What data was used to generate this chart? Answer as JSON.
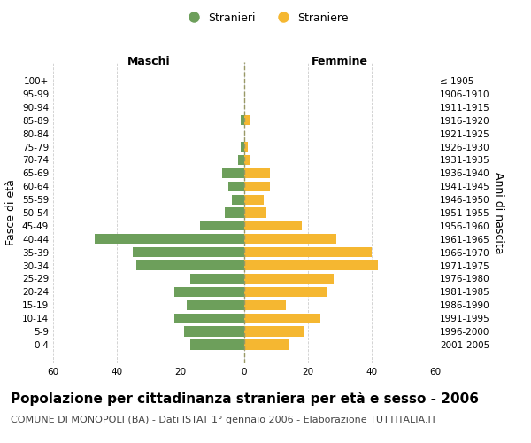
{
  "age_groups": [
    "100+",
    "95-99",
    "90-94",
    "85-89",
    "80-84",
    "75-79",
    "70-74",
    "65-69",
    "60-64",
    "55-59",
    "50-54",
    "45-49",
    "40-44",
    "35-39",
    "30-34",
    "25-29",
    "20-24",
    "15-19",
    "10-14",
    "5-9",
    "0-4"
  ],
  "birth_years": [
    "≤ 1905",
    "1906-1910",
    "1911-1915",
    "1916-1920",
    "1921-1925",
    "1926-1930",
    "1931-1935",
    "1936-1940",
    "1941-1945",
    "1946-1950",
    "1951-1955",
    "1956-1960",
    "1961-1965",
    "1966-1970",
    "1971-1975",
    "1976-1980",
    "1981-1985",
    "1986-1990",
    "1991-1995",
    "1996-2000",
    "2001-2005"
  ],
  "maschi": [
    0,
    0,
    0,
    1,
    0,
    1,
    2,
    7,
    5,
    4,
    6,
    14,
    47,
    35,
    34,
    17,
    22,
    18,
    22,
    19,
    17
  ],
  "femmine": [
    0,
    0,
    0,
    2,
    0,
    1,
    2,
    8,
    8,
    6,
    7,
    18,
    29,
    40,
    42,
    28,
    26,
    13,
    24,
    19,
    14
  ],
  "maschi_color": "#6d9f5b",
  "femmine_color": "#f5b731",
  "xlim": 60,
  "title": "Popolazione per cittadinanza straniera per età e sesso - 2006",
  "subtitle": "COMUNE DI MONOPOLI (BA) - Dati ISTAT 1° gennaio 2006 - Elaborazione TUTTITALIA.IT",
  "xlabel_left": "Maschi",
  "xlabel_right": "Femmine",
  "ylabel_left": "Fasce di età",
  "ylabel_right": "Anni di nascita",
  "legend_maschi": "Stranieri",
  "legend_femmine": "Straniere",
  "background_color": "#ffffff",
  "grid_color": "#cccccc",
  "title_fontsize": 11,
  "subtitle_fontsize": 8,
  "axis_label_fontsize": 9,
  "tick_fontsize": 7.5
}
